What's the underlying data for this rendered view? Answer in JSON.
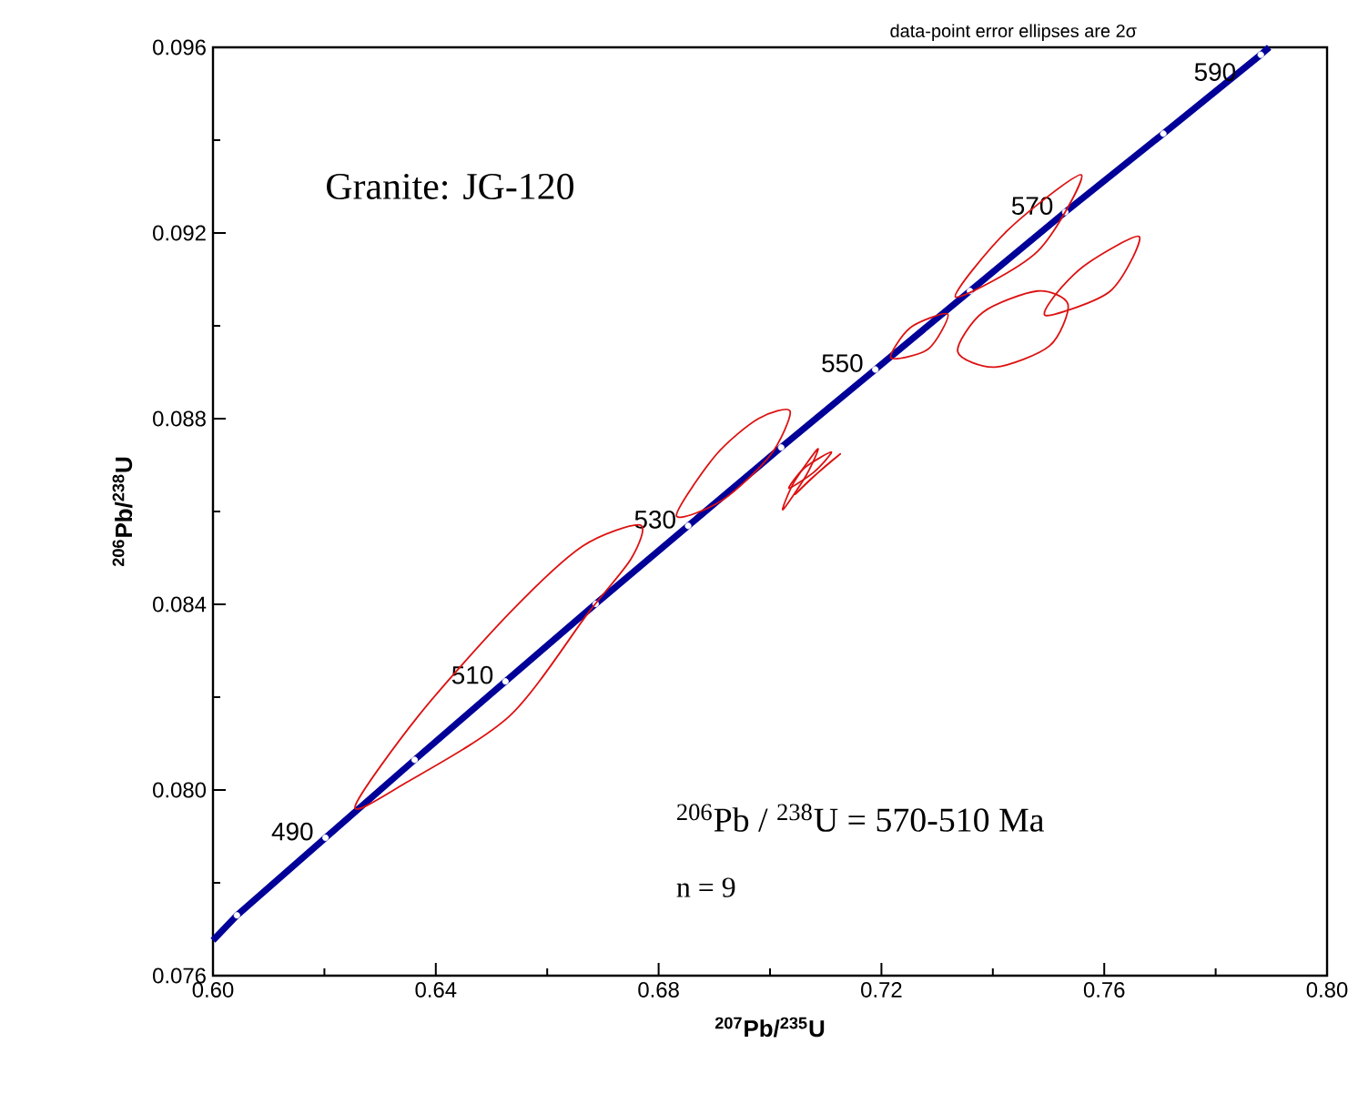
{
  "chart_data": {
    "type": "line",
    "title": "Granite: JG-120",
    "xlabel": "$^{207}$Pb/$^{235}$U",
    "ylabel": "$^{206}$Pb/$^{238}$U",
    "xlim": [
      0.6,
      0.8
    ],
    "ylim": [
      0.076,
      0.096
    ],
    "xticks": [
      {
        "value": 0.6,
        "label": "0.60"
      },
      {
        "value": 0.64,
        "label": "0.64"
      },
      {
        "value": 0.68,
        "label": "0.68"
      },
      {
        "value": 0.72,
        "label": "0.72"
      },
      {
        "value": 0.76,
        "label": "0.76"
      },
      {
        "value": 0.8,
        "label": "0.80"
      }
    ],
    "yticks": [
      {
        "value": 0.076,
        "label": "0.076"
      },
      {
        "value": 0.08,
        "label": "0.080"
      },
      {
        "value": 0.084,
        "label": "0.084"
      },
      {
        "value": 0.088,
        "label": "0.088"
      },
      {
        "value": 0.092,
        "label": "0.092"
      },
      {
        "value": 0.096,
        "label": "0.096"
      }
    ],
    "series": [
      {
        "color": "#000099",
        "marker": "none",
        "x": [
          0.6,
          0.6043,
          0.6202,
          0.6362,
          0.6525,
          0.6687,
          0.6853,
          0.702,
          0.7189,
          0.7359,
          0.753,
          0.7706,
          0.7881,
          0.7896
        ],
        "values": [
          0.07676,
          0.0773,
          0.07897,
          0.08065,
          0.08234,
          0.08401,
          0.08569,
          0.08738,
          0.08906,
          0.09075,
          0.09245,
          0.09414,
          0.09584,
          0.096
        ]
      },
      {
        "type": "scatter",
        "color": "#ffffff",
        "marker": "circle",
        "x": [
          0.6043,
          0.6202,
          0.6362,
          0.6525,
          0.6687,
          0.6853,
          0.702,
          0.7189,
          0.7359,
          0.753,
          0.7706,
          0.7881
        ],
        "values": [
          0.0773,
          0.07897,
          0.08065,
          0.08234,
          0.08401,
          0.08569,
          0.08738,
          0.08906,
          0.09075,
          0.09245,
          0.09414,
          0.09584
        ]
      }
    ],
    "annotations": [
      "data-point error ellipses are 2σ",
      "$^{206}$Pb / $^{238}$U =  570-510 Ma",
      "n = 9",
      {
        "text": "490",
        "x": 0.6202,
        "y": 0.07897
      },
      {
        "text": "510",
        "x": 0.6525,
        "y": 0.08234
      },
      {
        "text": "530",
        "x": 0.6853,
        "y": 0.08569
      },
      {
        "text": "550",
        "x": 0.7189,
        "y": 0.08906
      },
      {
        "text": "570",
        "x": 0.753,
        "y": 0.09245
      },
      {
        "text": "590",
        "x": 0.7881,
        "y": 0.09584
      }
    ]
  }
}
